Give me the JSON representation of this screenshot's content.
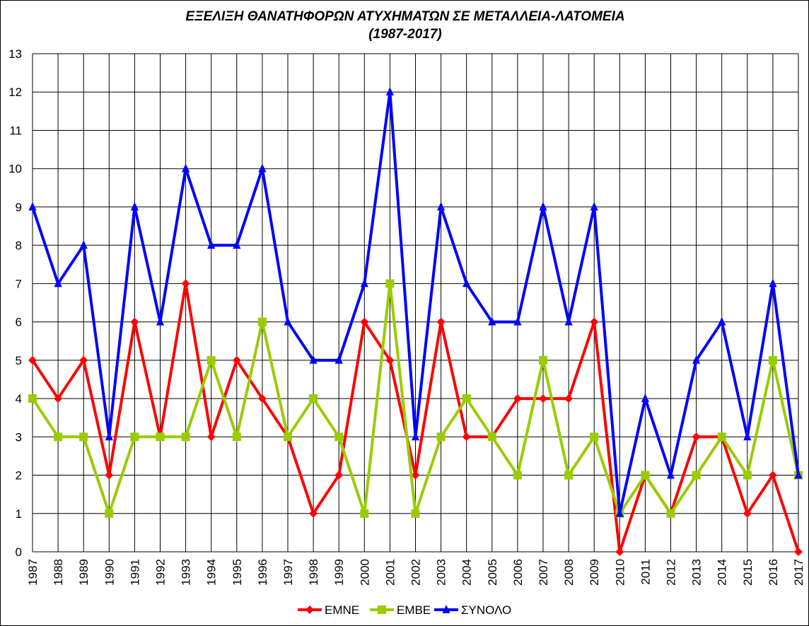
{
  "chart_data": {
    "type": "line",
    "title": "ΕΞΕΛΙΞΗ ΘΑΝΑΤΗΦΟΡΩΝ ΑΤΥΧΗΜΑΤΩΝ ΣΕ ΜΕΤΑΛΛΕΙΑ-ΛΑΤΟΜΕΙΑ",
    "subtitle": "(1987-2017)",
    "xlabel": "",
    "ylabel": "",
    "ylim": [
      0,
      13
    ],
    "yticks": [
      "0",
      "1",
      "2",
      "3",
      "4",
      "5",
      "6",
      "7",
      "8",
      "9",
      "10",
      "11",
      "12",
      "13"
    ],
    "categories": [
      "1987",
      "1988",
      "1989",
      "1990",
      "1991",
      "1992",
      "1993",
      "1994",
      "1995",
      "1996",
      "1997",
      "1998",
      "1999",
      "2000",
      "2001",
      "2002",
      "2003",
      "2004",
      "2005",
      "2006",
      "2007",
      "2008",
      "2009",
      "2010",
      "2011",
      "2012",
      "2013",
      "2014",
      "2015",
      "2016",
      "2017"
    ],
    "grid": true,
    "legend_position": "bottom",
    "series": [
      {
        "name": "ΕΜΝΕ",
        "color": "#ff0000",
        "marker": "diamond",
        "values": [
          5,
          4,
          5,
          2,
          6,
          3,
          7,
          3,
          5,
          4,
          3,
          1,
          2,
          6,
          5,
          2,
          6,
          3,
          3,
          4,
          4,
          4,
          6,
          0,
          2,
          1,
          3,
          3,
          1,
          2,
          0
        ]
      },
      {
        "name": "ΕΜΒΕ",
        "color": "#99cc00",
        "marker": "square",
        "values": [
          4,
          3,
          3,
          1,
          3,
          3,
          3,
          5,
          3,
          6,
          3,
          4,
          3,
          1,
          7,
          1,
          3,
          4,
          3,
          2,
          5,
          2,
          3,
          1,
          2,
          1,
          2,
          3,
          2,
          5,
          2
        ]
      },
      {
        "name": "ΣΥΝΟΛΟ",
        "color": "#0000ff",
        "marker": "triangle",
        "values": [
          9,
          7,
          8,
          3,
          9,
          6,
          10,
          8,
          8,
          10,
          6,
          5,
          5,
          7,
          12,
          3,
          9,
          7,
          6,
          6,
          9,
          6,
          9,
          1,
          4,
          2,
          5,
          6,
          3,
          7,
          2
        ]
      }
    ]
  }
}
